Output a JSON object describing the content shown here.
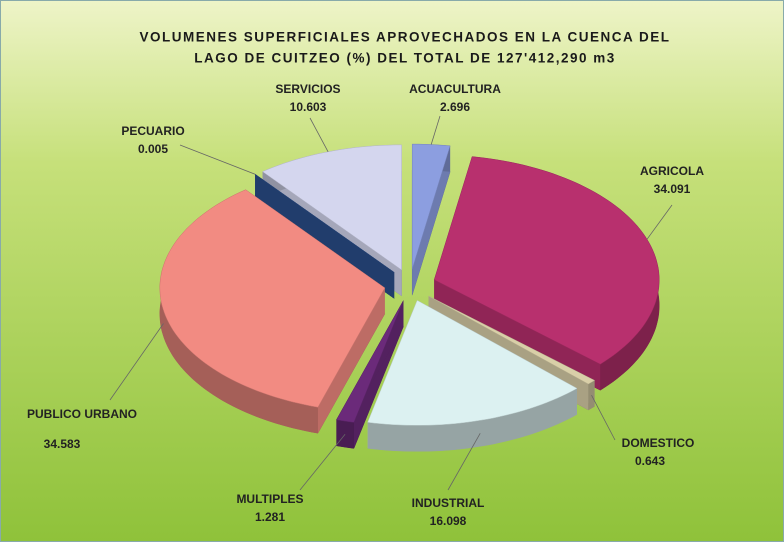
{
  "chart_data": {
    "type": "pie",
    "title": [
      "VOLUMENES SUPERFICIALES APROVECHADOS EN LA CUENCA DEL",
      "LAGO DE CUITZEO (%) DEL TOTAL DE 127'412,290 m3"
    ],
    "categories": [
      "ACUACULTURA",
      "AGRICOLA",
      "DOMESTICO",
      "INDUSTRIAL",
      "MULTIPLES",
      "PUBLICO URBANO",
      "PECUARIO",
      "SERVICIOS"
    ],
    "values": [
      2.696,
      34.091,
      0.643,
      16.098,
      1.281,
      34.583,
      0.005,
      10.603
    ],
    "colors": [
      "#8c9ee0",
      "#b8306e",
      "#d9cfa8",
      "#dcf1f1",
      "#6b2a7a",
      "#f28b82",
      "#2a4e8a",
      "#d4d6ee"
    ]
  }
}
